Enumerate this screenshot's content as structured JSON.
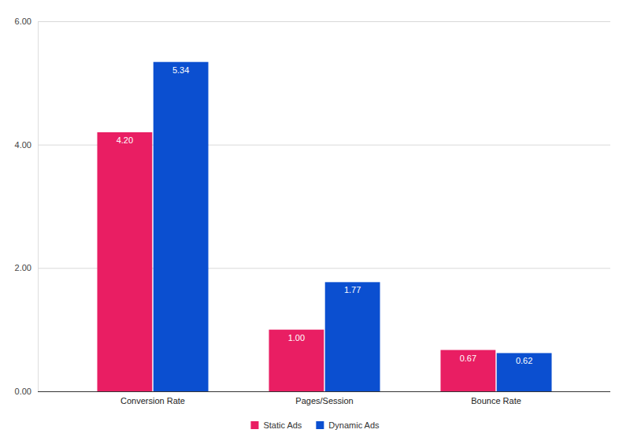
{
  "chart_data": {
    "type": "bar",
    "categories": [
      "Conversion Rate",
      "Pages/Session",
      "Bounce Rate"
    ],
    "series": [
      {
        "name": "Static Ads",
        "color": "#e91e63",
        "values": [
          4.2,
          1.0,
          0.67
        ],
        "value_labels": [
          "4.20",
          "1.00",
          "0.67"
        ]
      },
      {
        "name": "Dynamic Ads",
        "color": "#0b4fd0",
        "values": [
          5.34,
          1.77,
          0.62
        ],
        "value_labels": [
          "5.34",
          "1.77",
          "0.62"
        ]
      }
    ],
    "ylim": [
      0,
      6
    ],
    "yticks": [
      {
        "value": 0,
        "label": "0.00"
      },
      {
        "value": 2,
        "label": "2.00"
      },
      {
        "value": 4,
        "label": "4.00"
      },
      {
        "value": 6,
        "label": "6.00"
      }
    ],
    "grid": true,
    "legend": "bottom",
    "data_labels": true
  }
}
